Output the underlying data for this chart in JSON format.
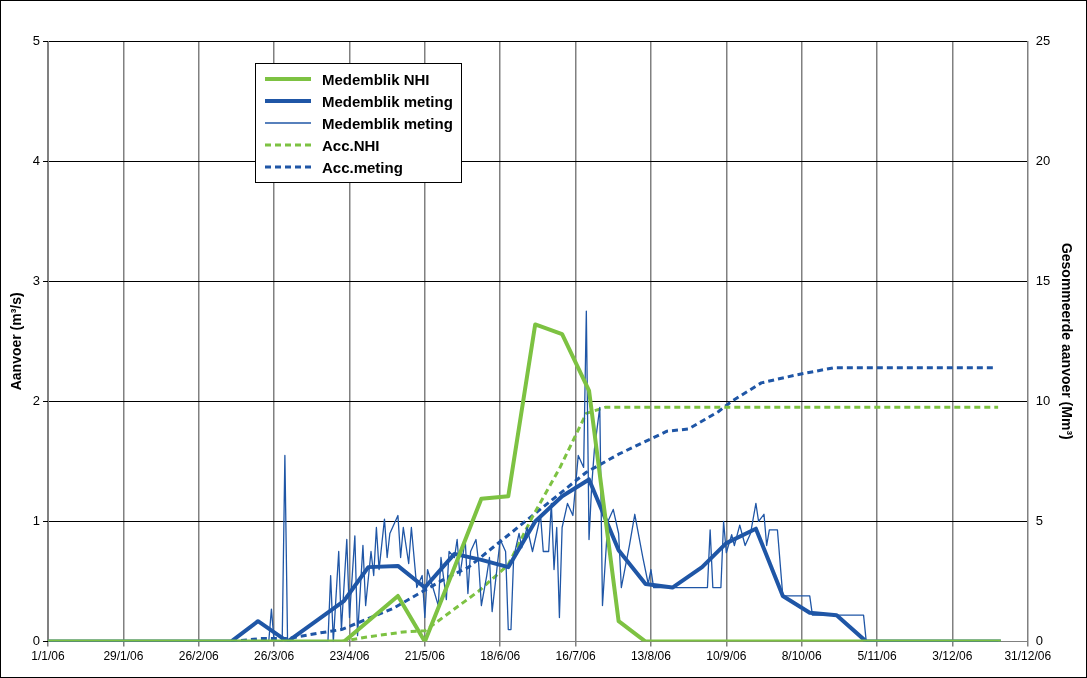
{
  "chart_data": {
    "type": "line",
    "xlabel": null,
    "ylabel": "Aanvoer (m³/s)",
    "y2label": "Gesommeerde aanvoer (Mm³)",
    "xlim": [
      "2006-01-01",
      "2006-12-31"
    ],
    "xticks": [
      {
        "value": "2006-01-01",
        "label": "1/1/06"
      },
      {
        "value": "2006-01-29",
        "label": "29/1/06"
      },
      {
        "value": "2006-02-26",
        "label": "26/2/06"
      },
      {
        "value": "2006-03-26",
        "label": "26/3/06"
      },
      {
        "value": "2006-04-23",
        "label": "23/4/06"
      },
      {
        "value": "2006-05-21",
        "label": "21/5/06"
      },
      {
        "value": "2006-06-18",
        "label": "18/6/06"
      },
      {
        "value": "2006-07-16",
        "label": "16/7/06"
      },
      {
        "value": "2006-08-13",
        "label": "13/8/06"
      },
      {
        "value": "2006-09-10",
        "label": "10/9/06"
      },
      {
        "value": "2006-10-08",
        "label": "8/10/06"
      },
      {
        "value": "2006-11-05",
        "label": "5/11/06"
      },
      {
        "value": "2006-12-03",
        "label": "3/12/06"
      },
      {
        "value": "2006-12-31",
        "label": "31/12/06"
      }
    ],
    "ylim": [
      0,
      5
    ],
    "yticks": [
      0,
      1,
      2,
      3,
      4,
      5
    ],
    "y2lim": [
      0,
      25
    ],
    "y2ticks": [
      0,
      5,
      10,
      15,
      20,
      25
    ],
    "grid": true,
    "legend": "top left",
    "marker": "none",
    "series": [
      {
        "name": "Medemblik NHI",
        "color": "#7dc242",
        "line_style": "solid",
        "x": [
          "2006-01-01",
          "2006-04-21",
          "2006-05-01",
          "2006-05-11",
          "2006-05-21",
          "2006-05-31",
          "2006-06-11",
          "2006-06-21",
          "2006-07-01",
          "2006-07-11",
          "2006-07-21",
          "2006-08-01",
          "2006-08-11",
          "2006-12-21"
        ],
        "values": [
          0,
          0,
          0.19,
          0.38,
          0,
          0.56,
          1.19,
          1.21,
          2.64,
          2.56,
          2.09,
          0.17,
          0,
          0
        ]
      },
      {
        "name": "Medemblik meting",
        "color": "#1f56a6",
        "line_style": "solid",
        "x": [
          "2006-01-01",
          "2006-03-10",
          "2006-03-20",
          "2006-03-31",
          "2006-04-21",
          "2006-04-30",
          "2006-05-11",
          "2006-05-21",
          "2006-06-01",
          "2006-06-11",
          "2006-06-21",
          "2006-07-01",
          "2006-07-11",
          "2006-07-21",
          "2006-08-01",
          "2006-08-11",
          "2006-08-21",
          "2006-09-01",
          "2006-09-10",
          "2006-09-21",
          "2006-10-01",
          "2006-10-11",
          "2006-10-21",
          "2006-11-01",
          "2006-12-21"
        ],
        "values": [
          0,
          0,
          0.17,
          0,
          0.34,
          0.62,
          0.63,
          0.45,
          0.73,
          0.68,
          0.62,
          1.0,
          1.21,
          1.35,
          0.76,
          0.48,
          0.45,
          0.62,
          0.82,
          0.94,
          0.38,
          0.24,
          0.22,
          0,
          0
        ]
      },
      {
        "name": "Medemblik meting",
        "color": "#1f56a6",
        "line_style": "solid",
        "x": [
          "2006-01-01",
          "2006-03-24",
          "2006-03-25",
          "2006-03-26",
          "2006-03-29",
          "2006-03-30",
          "2006-03-31",
          "2006-04-15",
          "2006-04-16",
          "2006-04-17",
          "2006-04-19",
          "2006-04-20",
          "2006-04-22",
          "2006-04-23",
          "2006-04-25",
          "2006-04-26",
          "2006-04-28",
          "2006-04-29",
          "2006-05-01",
          "2006-05-02",
          "2006-05-03",
          "2006-05-04",
          "2006-05-06",
          "2006-05-07",
          "2006-05-08",
          "2006-05-11",
          "2006-05-12",
          "2006-05-13",
          "2006-05-15",
          "2006-05-16",
          "2006-05-18",
          "2006-05-20",
          "2006-05-21",
          "2006-05-22",
          "2006-05-24",
          "2006-05-26",
          "2006-05-27",
          "2006-05-29",
          "2006-05-30",
          "2006-06-01",
          "2006-06-02",
          "2006-06-03",
          "2006-06-05",
          "2006-06-06",
          "2006-06-07",
          "2006-06-09",
          "2006-06-10",
          "2006-06-11",
          "2006-06-13",
          "2006-06-14",
          "2006-06-15",
          "2006-06-17",
          "2006-06-18",
          "2006-06-20",
          "2006-06-21",
          "2006-06-22",
          "2006-06-23",
          "2006-06-25",
          "2006-06-26",
          "2006-06-28",
          "2006-06-30",
          "2006-07-02",
          "2006-07-03",
          "2006-07-04",
          "2006-07-06",
          "2006-07-07",
          "2006-07-08",
          "2006-07-09",
          "2006-07-10",
          "2006-07-11",
          "2006-07-13",
          "2006-07-15",
          "2006-07-17",
          "2006-07-19",
          "2006-07-20",
          "2006-07-21",
          "2006-07-22",
          "2006-07-23",
          "2006-07-25",
          "2006-07-26",
          "2006-07-28",
          "2006-07-30",
          "2006-08-01",
          "2006-08-02",
          "2006-08-05",
          "2006-08-07",
          "2006-08-10",
          "2006-08-12",
          "2006-08-13",
          "2006-08-14",
          "2006-09-03",
          "2006-09-04",
          "2006-09-05",
          "2006-09-08",
          "2006-09-09",
          "2006-09-10",
          "2006-09-12",
          "2006-09-13",
          "2006-09-15",
          "2006-09-17",
          "2006-09-19",
          "2006-09-21",
          "2006-09-22",
          "2006-09-24",
          "2006-09-25",
          "2006-09-26",
          "2006-09-29",
          "2006-10-01",
          "2006-10-11",
          "2006-10-12",
          "2006-10-31",
          "2006-11-01",
          "2006-12-20"
        ],
        "values": [
          0,
          0,
          0.27,
          0,
          0,
          1.55,
          0,
          0,
          0.55,
          0,
          0.75,
          0.1,
          0.85,
          0.2,
          0.88,
          0.05,
          0.8,
          0.3,
          0.75,
          0.55,
          0.95,
          0.6,
          1.02,
          0.7,
          0.9,
          1.05,
          0.7,
          0.95,
          0.65,
          0.95,
          0.45,
          0.55,
          0.2,
          0.6,
          0.45,
          0.3,
          0.7,
          0.35,
          0.75,
          0.7,
          0.85,
          0.55,
          0.85,
          0.4,
          0.75,
          0.85,
          0.65,
          0.3,
          0.55,
          0.7,
          0.25,
          0.65,
          0.85,
          0.75,
          0.1,
          0.1,
          0.7,
          0.9,
          0.78,
          0.95,
          0.75,
          0.95,
          1.05,
          0.75,
          0.75,
          1.15,
          0.6,
          0.95,
          0.2,
          0.95,
          1.15,
          1.05,
          1.55,
          1.45,
          2.75,
          0.85,
          1.3,
          1.6,
          1.95,
          0.3,
          1.0,
          1.1,
          0.9,
          0.45,
          0.8,
          1.06,
          0.7,
          0.48,
          0.6,
          0.45,
          0.45,
          0.93,
          0.45,
          0.45,
          1.0,
          0.74,
          0.89,
          0.8,
          0.97,
          0.8,
          0.9,
          1.15,
          1.0,
          1.06,
          0.8,
          0.93,
          0.93,
          0.38,
          0.38,
          0.22,
          0.22,
          0,
          0
        ]
      },
      {
        "name": "Acc.NHI",
        "color": "#7dc242",
        "line_style": "dashed",
        "axis": "y2",
        "x": [
          "2006-04-20",
          "2006-04-30",
          "2006-05-13",
          "2006-05-21",
          "2006-06-10",
          "2006-06-21",
          "2006-06-30",
          "2006-07-10",
          "2006-07-20",
          "2006-07-27",
          "2006-12-20"
        ],
        "values": [
          0,
          0.2,
          0.4,
          0.45,
          2.1,
          3.2,
          5.2,
          7.2,
          9.5,
          9.75,
          9.75
        ]
      },
      {
        "name": "Acc.meting",
        "color": "#1f56a6",
        "line_style": "dashed",
        "axis": "y2",
        "x": [
          "2006-03-10",
          "2006-03-21",
          "2006-03-31",
          "2006-04-13",
          "2006-04-20",
          "2006-05-09",
          "2006-05-29",
          "2006-06-06",
          "2006-07-20",
          "2006-08-01",
          "2006-08-19",
          "2006-08-27",
          "2006-09-07",
          "2006-09-12",
          "2006-09-23",
          "2006-10-06",
          "2006-10-20",
          "2006-12-19"
        ],
        "values": [
          0,
          0.13,
          0.13,
          0.38,
          0.5,
          1.37,
          2.65,
          3.08,
          7.05,
          7.8,
          8.76,
          8.85,
          9.57,
          10.0,
          10.77,
          11.1,
          11.4,
          11.4
        ]
      }
    ]
  }
}
